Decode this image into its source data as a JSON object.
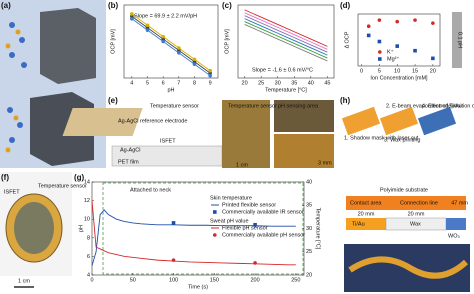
{
  "panel_labels": [
    "(a)",
    "(b)",
    "(c)",
    "(d)",
    "(e)",
    "(f)",
    "(g)",
    "(h)"
  ],
  "texts": {
    "e": [
      "Temperature sensor",
      "Ag-AgCl reference electrode",
      "ISFET",
      "Ag-AgCl",
      "PET film",
      "1 cm",
      "Temperature sensor",
      "pH sensing area",
      "3 mm"
    ],
    "f": [
      "ISFET",
      "Temperature sensor",
      "1 cm"
    ],
    "h": [
      "1. Shadow mask with laser cut",
      "2. E-beam evaporation of Ti/Au",
      "3. Wax printing",
      "4. Electrodeposition of WO₃ nP's",
      "Polyimide substrate",
      "Contact area",
      "Connection line",
      "47 mm",
      "20 mm",
      "20 mm",
      "Ti/Au",
      "Wax",
      "WO₃"
    ]
  },
  "chart_data": [
    {
      "type": "line",
      "x_label": "pH",
      "y_label": "OCP [mV]",
      "annotation": "Slope = 69.9 ± 2.2 mV/pH",
      "x": [
        4,
        5,
        6,
        7,
        8,
        9
      ],
      "xlim": [
        3.5,
        9.5
      ],
      "xticks": [
        4,
        5,
        6,
        7,
        8,
        9
      ],
      "ylim": [
        -150,
        300
      ],
      "series": [
        {
          "color": "#444444",
          "marker": "circle",
          "values": [
            230,
            160,
            90,
            20,
            -50,
            -120
          ]
        },
        {
          "color": "#d4b000",
          "marker": "circle",
          "values": [
            245,
            175,
            105,
            35,
            -35,
            -105
          ]
        },
        {
          "color": "#3a7bd5",
          "marker": "circle",
          "values": [
            215,
            145,
            75,
            5,
            -65,
            -135
          ]
        }
      ]
    },
    {
      "type": "line",
      "x_label": "Temperature [°C]",
      "y_label": "OCP [mV]",
      "annotation": "Slope = -1.6 ± 0.6 mV/°C",
      "x": [
        20,
        25,
        30,
        35,
        40,
        45
      ],
      "xlim": [
        18,
        47
      ],
      "xticks": [
        20,
        25,
        30,
        35,
        40,
        45
      ],
      "ylim": [
        0,
        300
      ],
      "series": [
        {
          "color": "#d62728",
          "values": [
            280,
            250,
            220,
            190,
            160,
            130
          ]
        },
        {
          "color": "#e377c2",
          "values": [
            268,
            238,
            208,
            178,
            148,
            118
          ]
        },
        {
          "color": "#9467bd",
          "values": [
            256,
            226,
            196,
            166,
            136,
            106
          ]
        },
        {
          "color": "#1f77b4",
          "values": [
            244,
            214,
            184,
            154,
            124,
            94
          ]
        },
        {
          "color": "#2ca02c",
          "values": [
            232,
            202,
            172,
            142,
            112,
            82
          ]
        },
        {
          "color": "#7f7f7f",
          "values": [
            220,
            190,
            160,
            130,
            100,
            70
          ]
        }
      ]
    },
    {
      "type": "scatter",
      "x_label": "Ion Concentration [mM]",
      "y_label": "Δ OCP",
      "annotation": "0.1 pH",
      "x": [
        2,
        5,
        10,
        15,
        20
      ],
      "xlim": [
        -1,
        22
      ],
      "xticks": [
        0,
        5,
        10,
        15,
        20
      ],
      "ylim": [
        -0.1,
        0.07
      ],
      "series": [
        {
          "name": "K⁺",
          "color": "#d62728",
          "marker": "circle",
          "values": [
            0.03,
            0.05,
            0.045,
            0.05,
            0.04
          ]
        },
        {
          "name": "Mg²⁺",
          "color": "#1f4fa8",
          "marker": "square",
          "values": [
            0.0,
            -0.02,
            -0.035,
            -0.05,
            -0.075
          ]
        }
      ]
    },
    {
      "type": "line",
      "x_label": "Time (s)",
      "y_label": "pH",
      "y2_label": "Temperature [°C]",
      "annotation": "Attached to neck",
      "legend_titles": [
        "Skin temperature",
        "Sweat pH value"
      ],
      "x": [
        0,
        5,
        10,
        15,
        20,
        30,
        40,
        50,
        60,
        80,
        100,
        120,
        140,
        160,
        180,
        200,
        220,
        240,
        250
      ],
      "xlim": [
        0,
        260
      ],
      "xticks": [
        0,
        50,
        100,
        150,
        200,
        250
      ],
      "ylim": [
        4,
        14
      ],
      "yticks": [
        4,
        6,
        8,
        10,
        12,
        14
      ],
      "y2lim": [
        20,
        40
      ],
      "y2ticks": [
        20,
        25,
        30,
        35,
        40
      ],
      "series": [
        {
          "name": "Printed flexible sensor",
          "color": "#1f4fa8",
          "axis": "y2",
          "values": [
            22,
            25,
            33,
            34,
            33,
            32,
            31.5,
            31.2,
            31,
            30.8,
            30.8,
            30.7,
            30.7,
            30.6,
            30.6,
            30.6,
            30.5,
            30.5,
            30.5
          ]
        },
        {
          "name": "Commercially available IR sensor",
          "color": "#1f4fa8",
          "axis": "y2",
          "mode": "markers",
          "marker": "square",
          "x": [
            100,
            200
          ],
          "values": [
            31.2,
            30.8
          ]
        },
        {
          "name": "Flexible pH sensor",
          "color": "#d62728",
          "values": [
            12,
            7,
            6.8,
            6.6,
            6.4,
            6.2,
            6.0,
            5.9,
            5.8,
            5.6,
            5.5,
            5.4,
            5.35,
            5.3,
            5.25,
            5.2,
            5.15,
            5.1,
            5.1
          ]
        },
        {
          "name": "Commercially available pH sensor",
          "color": "#d62728",
          "mode": "markers",
          "marker": "circle",
          "x": [
            100,
            200
          ],
          "values": [
            5.6,
            5.3
          ]
        }
      ]
    }
  ]
}
